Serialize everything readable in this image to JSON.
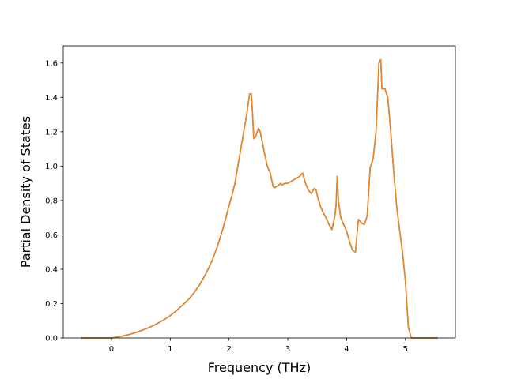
{
  "chart_data": {
    "type": "line",
    "title": "",
    "xlabel": "Frequency (THz)",
    "ylabel": "Partial Density of States",
    "xlim": [
      -0.82,
      5.85
    ],
    "ylim": [
      0.0,
      1.7
    ],
    "xticks": [
      0,
      1,
      2,
      3,
      4,
      5
    ],
    "yticks": [
      0.0,
      0.2,
      0.4,
      0.6,
      0.8,
      1.0,
      1.2,
      1.4,
      1.6
    ],
    "xtick_labels": [
      "0",
      "1",
      "2",
      "3",
      "4",
      "5"
    ],
    "ytick_labels": [
      "0.0",
      "0.2",
      "0.4",
      "0.6",
      "0.8",
      "1.0",
      "1.2",
      "1.4",
      "1.6"
    ],
    "grid": false,
    "legend": "none",
    "series": [
      {
        "name": "",
        "color": "#e8862a",
        "under_color": "#1f77b4",
        "x": [
          -0.52,
          0.0,
          0.1,
          0.2,
          0.3,
          0.4,
          0.5,
          0.6,
          0.7,
          0.8,
          0.9,
          1.0,
          1.1,
          1.2,
          1.3,
          1.4,
          1.5,
          1.6,
          1.7,
          1.8,
          1.9,
          2.0,
          2.05,
          2.1,
          2.15,
          2.2,
          2.25,
          2.3,
          2.35,
          2.38,
          2.4,
          2.42,
          2.45,
          2.48,
          2.5,
          2.53,
          2.56,
          2.6,
          2.65,
          2.7,
          2.75,
          2.78,
          2.8,
          2.85,
          2.88,
          2.9,
          2.95,
          3.0,
          3.05,
          3.1,
          3.15,
          3.2,
          3.25,
          3.3,
          3.35,
          3.4,
          3.45,
          3.48,
          3.5,
          3.55,
          3.6,
          3.65,
          3.7,
          3.75,
          3.8,
          3.82,
          3.84,
          3.86,
          3.9,
          3.95,
          4.0,
          4.05,
          4.1,
          4.15,
          4.2,
          4.25,
          4.3,
          4.35,
          4.4,
          4.45,
          4.5,
          4.55,
          4.58,
          4.6,
          4.65,
          4.7,
          4.75,
          4.8,
          4.85,
          4.9,
          4.95,
          5.0,
          5.05,
          5.1,
          5.55
        ],
        "y": [
          0.0,
          0.0,
          0.005,
          0.012,
          0.02,
          0.03,
          0.042,
          0.055,
          0.07,
          0.088,
          0.108,
          0.13,
          0.158,
          0.188,
          0.22,
          0.26,
          0.31,
          0.37,
          0.44,
          0.53,
          0.64,
          0.77,
          0.83,
          0.9,
          1.0,
          1.1,
          1.2,
          1.3,
          1.42,
          1.42,
          1.3,
          1.16,
          1.17,
          1.2,
          1.22,
          1.2,
          1.15,
          1.08,
          1.0,
          0.96,
          0.88,
          0.875,
          0.88,
          0.89,
          0.9,
          0.89,
          0.9,
          0.9,
          0.91,
          0.92,
          0.93,
          0.94,
          0.96,
          0.9,
          0.86,
          0.84,
          0.87,
          0.86,
          0.83,
          0.77,
          0.73,
          0.7,
          0.66,
          0.63,
          0.71,
          0.77,
          0.94,
          0.8,
          0.7,
          0.66,
          0.62,
          0.56,
          0.51,
          0.5,
          0.69,
          0.67,
          0.66,
          0.71,
          0.99,
          1.04,
          1.2,
          1.6,
          1.62,
          1.45,
          1.45,
          1.4,
          1.2,
          0.97,
          0.77,
          0.63,
          0.5,
          0.33,
          0.06,
          0.0,
          0.0
        ]
      }
    ]
  }
}
